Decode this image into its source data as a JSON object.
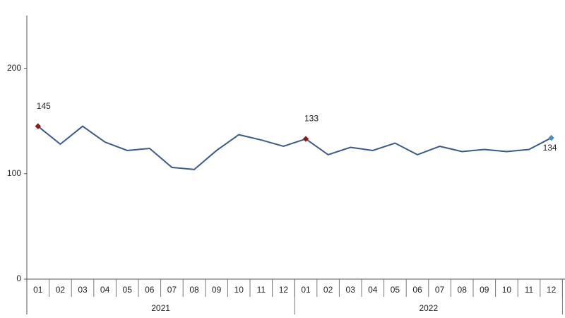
{
  "chart_data": {
    "type": "line",
    "categories": [
      "01",
      "02",
      "03",
      "04",
      "05",
      "06",
      "07",
      "08",
      "09",
      "10",
      "11",
      "12",
      "01",
      "02",
      "03",
      "04",
      "05",
      "06",
      "07",
      "08",
      "09",
      "10",
      "11",
      "12"
    ],
    "groups": [
      {
        "label": "2021",
        "span": 12
      },
      {
        "label": "2022",
        "span": 12
      }
    ],
    "series": [
      {
        "color": "#3a5a8c",
        "values": [
          145,
          128,
          145,
          130,
          122,
          124,
          106,
          104,
          122,
          137,
          132,
          126,
          133,
          118,
          125,
          122,
          129,
          118,
          126,
          121,
          123,
          121,
          123,
          134
        ]
      }
    ],
    "markers": [
      {
        "index": 0,
        "color": "#8b1a1a"
      },
      {
        "index": 12,
        "color": "#8b1a1a"
      },
      {
        "index": 23,
        "color": "#4a90c8"
      }
    ],
    "ylim": [
      0,
      250
    ],
    "yticks": [
      0,
      100,
      200
    ],
    "grid": false
  }
}
